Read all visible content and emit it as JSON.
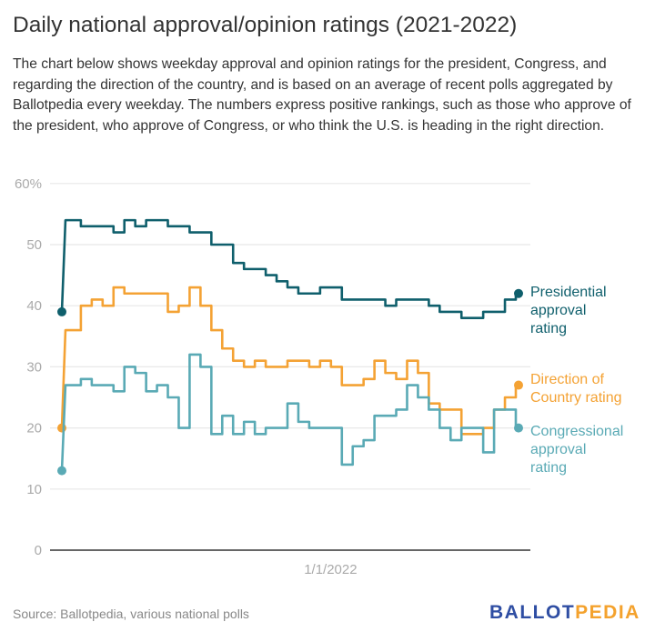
{
  "title": "Daily national approval/opinion ratings (2021-2022)",
  "description": "The chart below shows weekday approval and opinion ratings for the president, Congress, and regarding the direction of the country, and is based on an average of recent polls aggregated by Ballotpedia every weekday. The numbers express positive rankings, such as those who approve of the president, who approve of Congress, or who think the U.S. is heading in the right direction.",
  "source": "Source: Ballotpedia, various national polls",
  "logo": {
    "part1": "BALLOT",
    "part2": "PEDIA"
  },
  "chart_data": {
    "type": "line",
    "title": "Daily national approval/opinion ratings (2021-2022)",
    "xlabel": "",
    "ylabel": "",
    "ylim": [
      0,
      60
    ],
    "yticks": [
      "0",
      "10",
      "20",
      "30",
      "40",
      "50",
      "60%"
    ],
    "xticks": [
      {
        "date": "2022-01-01",
        "label": "1/1/2022"
      }
    ],
    "grid": true,
    "legend": "direct labels at line ends (right)",
    "x": [
      "2021-01-20",
      "2021-02-03",
      "2021-02-17",
      "2021-03-03",
      "2021-03-17",
      "2021-03-31",
      "2021-04-14",
      "2021-04-28",
      "2021-05-12",
      "2021-05-26",
      "2021-06-09",
      "2021-06-23",
      "2021-07-07",
      "2021-07-21",
      "2021-08-04",
      "2021-08-18",
      "2021-09-01",
      "2021-09-15",
      "2021-09-29",
      "2021-10-13",
      "2021-10-27",
      "2021-11-10",
      "2021-11-24",
      "2021-12-08",
      "2021-12-22",
      "2022-01-05",
      "2022-01-19",
      "2022-02-02",
      "2022-02-16",
      "2022-03-02",
      "2022-03-16",
      "2022-03-30",
      "2022-04-13",
      "2022-04-27",
      "2022-05-11",
      "2022-05-25",
      "2022-06-08",
      "2022-06-22",
      "2022-07-06",
      "2022-07-20",
      "2022-08-03",
      "2022-08-17",
      "2022-08-31"
    ],
    "series": [
      {
        "name": "Presidential approval rating",
        "label_lines": [
          "Presidential",
          "approval",
          "rating"
        ],
        "color": "#0f5f6c",
        "values": [
          39,
          54,
          53,
          53,
          53,
          52,
          54,
          53,
          54,
          54,
          53,
          53,
          52,
          52,
          50,
          50,
          47,
          46,
          46,
          45,
          44,
          43,
          42,
          42,
          43,
          43,
          41,
          41,
          41,
          41,
          40,
          41,
          41,
          41,
          40,
          39,
          39,
          38,
          38,
          39,
          39,
          41,
          42
        ]
      },
      {
        "name": "Direction of Country rating",
        "label_lines": [
          "Direction of",
          "Country rating"
        ],
        "color": "#f4a234",
        "values": [
          20,
          36,
          40,
          41,
          40,
          43,
          42,
          42,
          42,
          42,
          39,
          40,
          43,
          40,
          36,
          33,
          31,
          30,
          31,
          30,
          30,
          31,
          31,
          30,
          31,
          30,
          27,
          27,
          28,
          31,
          29,
          28,
          31,
          29,
          24,
          23,
          23,
          19,
          19,
          20,
          23,
          25,
          27
        ]
      },
      {
        "name": "Congressional approval rating",
        "label_lines": [
          "Congressional",
          "approval",
          "rating"
        ],
        "color": "#5aaab5",
        "values": [
          13,
          27,
          28,
          27,
          27,
          26,
          30,
          29,
          26,
          27,
          25,
          20,
          32,
          30,
          19,
          22,
          19,
          21,
          19,
          20,
          20,
          24,
          21,
          20,
          20,
          20,
          14,
          17,
          18,
          22,
          22,
          23,
          27,
          25,
          23,
          20,
          18,
          20,
          20,
          16,
          23,
          23,
          20
        ]
      }
    ]
  }
}
